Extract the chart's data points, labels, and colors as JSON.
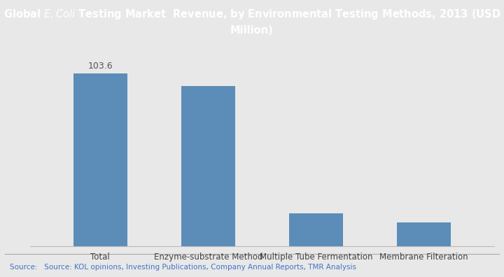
{
  "categories": [
    "Total",
    "Enzyme-substrate Method",
    "Multiple Tube Fermentation",
    "Membrane Filteration"
  ],
  "values": [
    103.6,
    96.0,
    20.0,
    14.5
  ],
  "bar_color": "#5B8DB8",
  "label_value": "103.6",
  "title_text": "Global $\\it{E. Coli}$ Testing Market  Revenue, by Environmental Testing Methods, 2013 (USD\nMillion)",
  "title_bg_color": "#2D6166",
  "title_text_color": "#FFFFFF",
  "bg_color": "#E8E8E8",
  "plot_bg_color": "#E8E8E8",
  "footer_text": "Source:   Source: KOL opinions, Investing Publications, Company Annual Reports, TMR Analysis",
  "footer_bg_color": "#FFFFFF",
  "footer_text_color": "#4472C4",
  "ylim": [
    0,
    120
  ],
  "bar_width": 0.5
}
